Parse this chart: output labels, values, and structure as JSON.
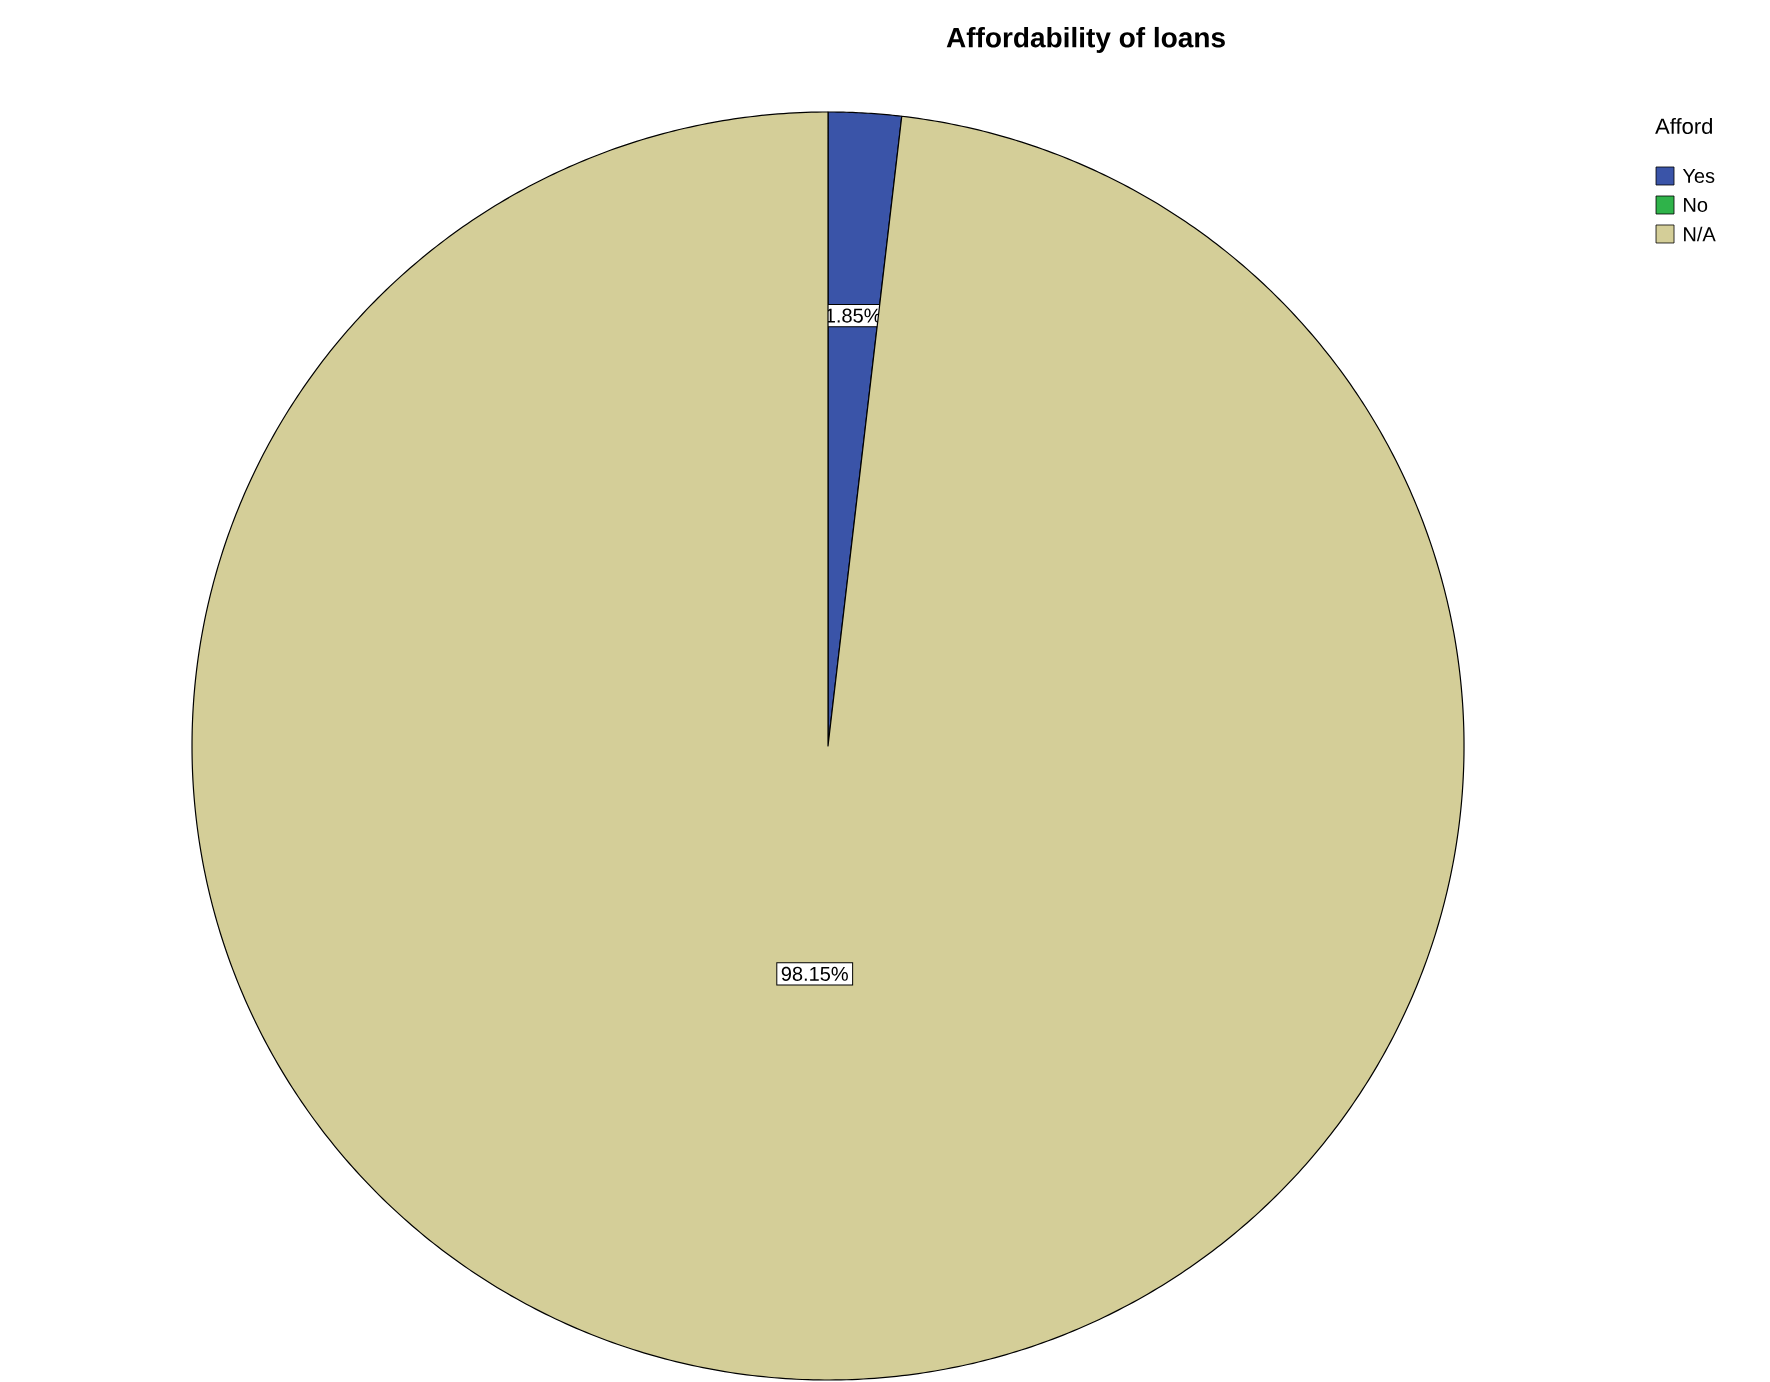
{
  "chart_data": {
    "type": "pie",
    "title": "Affordability of loans",
    "legend_title": "Afford",
    "categories": [
      "Yes",
      "No",
      "N/A"
    ],
    "values": [
      1.85,
      0,
      98.15
    ],
    "colors": [
      "#3a54a8",
      "#2fb34a",
      "#d4ce98"
    ],
    "value_labels": [
      "1.85%",
      null,
      "98.15%"
    ],
    "legend": "top right"
  }
}
